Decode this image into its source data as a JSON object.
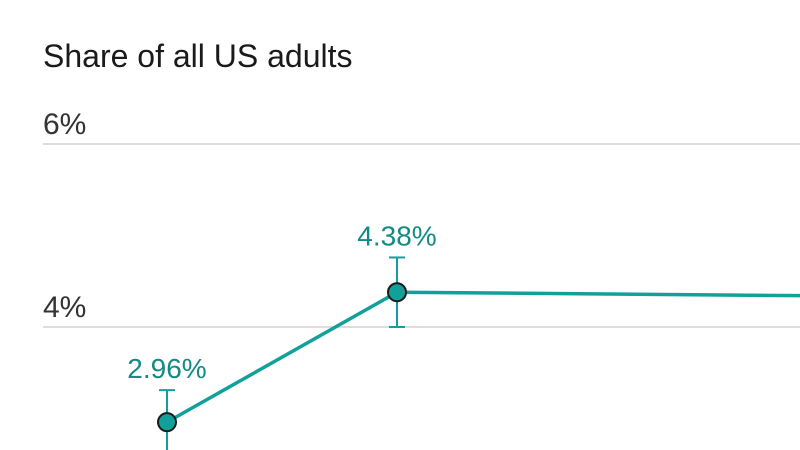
{
  "chart_data": {
    "type": "line",
    "title": "Share of all US adults",
    "xlabel": "",
    "ylabel": "",
    "ylim": [
      0,
      6
    ],
    "y_ticks": [
      {
        "value": 4,
        "label": "4%"
      },
      {
        "value": 6,
        "label": "6%"
      }
    ],
    "grid": true,
    "series": [
      {
        "color": "#12a19a",
        "points": [
          {
            "index": 0,
            "value": 2.96,
            "label": "2.96%",
            "err_low": 2.61,
            "err_high": 3.31
          },
          {
            "index": 1,
            "value": 4.38,
            "label": "4.38%",
            "err_low": 4.0,
            "err_high": 4.76
          },
          {
            "index": 2,
            "value": 4.34
          }
        ]
      }
    ]
  },
  "colors": {
    "series": "#12a19a",
    "label": "#128a86",
    "marker_stroke": "#1a1a1a",
    "grid": "#dddddd"
  }
}
